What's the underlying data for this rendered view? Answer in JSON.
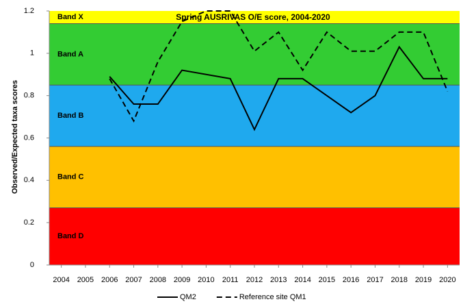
{
  "chart_data": {
    "type": "line",
    "title": "Spring AUSRIVAS O/E score, 2004-2020",
    "y_label": "Observed/Expected taxa scores",
    "xlim": [
      2003.5,
      2020.5
    ],
    "xticks": [
      2004,
      2005,
      2006,
      2007,
      2008,
      2009,
      2010,
      2011,
      2012,
      2013,
      2014,
      2015,
      2016,
      2017,
      2018,
      2019,
      2020
    ],
    "ylim": [
      0,
      1.2
    ],
    "yticks": [
      0,
      0.2,
      0.4,
      0.6,
      0.8,
      1,
      1.2
    ],
    "bands": [
      {
        "label": "Band X",
        "from": 1.14,
        "to": 1.2,
        "color": "#ffff00"
      },
      {
        "label": "Band A",
        "from": 0.85,
        "to": 1.14,
        "color": "#33cc33"
      },
      {
        "label": "Band B",
        "from": 0.56,
        "to": 0.85,
        "color": "#1fa9ee"
      },
      {
        "label": "Band C",
        "from": 0.27,
        "to": 0.56,
        "color": "#ffc000"
      },
      {
        "label": "Band D",
        "from": 0,
        "to": 0.27,
        "color": "#ff0000"
      }
    ],
    "legend": "bottom",
    "series": [
      {
        "name": "QM2",
        "color": "#000000",
        "dash": false,
        "x": [
          2006,
          2007,
          2008,
          2009,
          2011,
          2012,
          2013,
          2014,
          2016,
          2017,
          2018,
          2019,
          2020
        ],
        "values": [
          0.89,
          0.76,
          0.76,
          0.92,
          0.88,
          0.64,
          0.88,
          0.88,
          0.72,
          0.8,
          1.03,
          0.88,
          0.88
        ]
      },
      {
        "name": "Reference site QM1",
        "color": "#000000",
        "dash": true,
        "x": [
          2006,
          2007,
          2008,
          2009,
          2010,
          2011,
          2012,
          2013,
          2014,
          2015,
          2016,
          2017,
          2018,
          2019,
          2020
        ],
        "values": [
          0.88,
          0.68,
          0.96,
          1.15,
          1.2,
          1.2,
          1.01,
          1.1,
          0.92,
          1.1,
          1.01,
          1.01,
          1.1,
          1.1,
          0.82
        ]
      }
    ]
  }
}
